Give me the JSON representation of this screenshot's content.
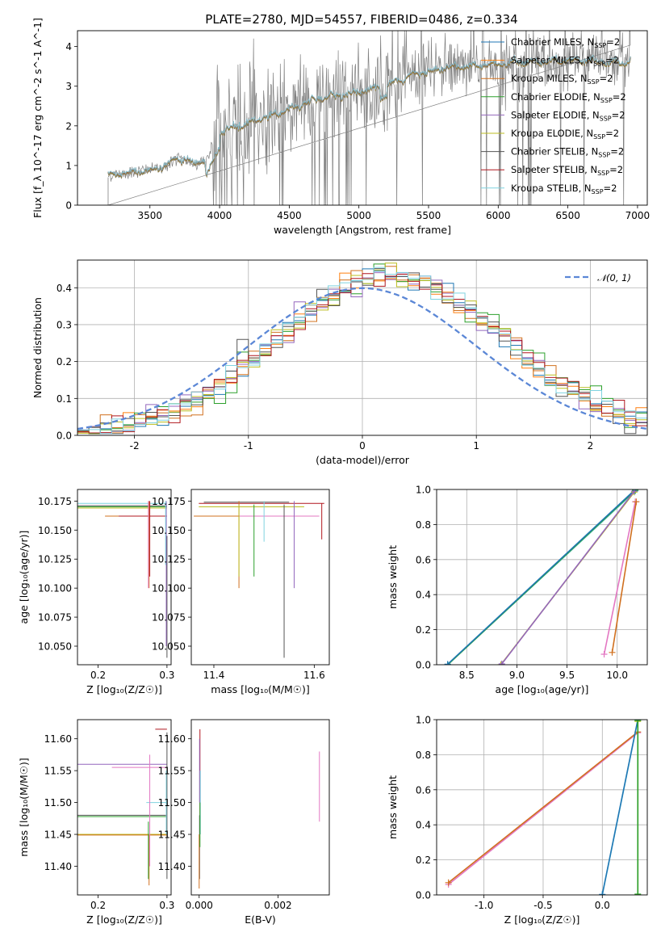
{
  "figure": {
    "title": "PLATE=2780, MJD=54557, FIBERID=0486, z=0.334"
  },
  "colors": {
    "Chabrier MILES": "#1f77b4",
    "Salpeter MILES": "#ff7f0e",
    "Kroupa MILES": "#d0701f",
    "Chabrier ELODIE": "#2ca02c",
    "Salpeter ELODIE": "#9467bd",
    "Kroupa ELODIE": "#bcbd22",
    "Chabrier STELIB": "#555555",
    "Salpeter STELIB": "#b0171f",
    "Kroupa STELIB": "#7fd3e0",
    "data": "#808080",
    "gaussian": "#5b87d6"
  },
  "chart_data": [
    {
      "id": "spectrum",
      "type": "line",
      "title": "PLATE=2780, MJD=54557, FIBERID=0486, z=0.334",
      "xlabel": "wavelength [Angstrom, rest frame]",
      "ylabel": "Flux [f_λ 10^-17 erg cm^-2 s^-1 A^-1]",
      "xlim": [
        2980,
        7070
      ],
      "ylim": [
        0,
        4.4
      ],
      "xticks": [
        3500,
        4000,
        4500,
        5000,
        5500,
        6000,
        6500,
        7000
      ],
      "yticks": [
        0,
        1,
        2,
        3,
        4
      ],
      "legend_position": "top-right",
      "legend": [
        {
          "label": "Chabrier MILES, N",
          "sub": "SSP",
          "tail": "=2",
          "color": "#1f77b4"
        },
        {
          "label": "Salpeter MILES, N",
          "sub": "SSP",
          "tail": "=2",
          "color": "#ff7f0e"
        },
        {
          "label": "Kroupa MILES, N",
          "sub": "SSP",
          "tail": "=2",
          "color": "#d0701f"
        },
        {
          "label": "Chabrier ELODIE, N",
          "sub": "SSP",
          "tail": "=2",
          "color": "#2ca02c"
        },
        {
          "label": "Salpeter ELODIE, N",
          "sub": "SSP",
          "tail": "=2",
          "color": "#9467bd"
        },
        {
          "label": "Kroupa ELODIE, N",
          "sub": "SSP",
          "tail": "=2",
          "color": "#bcbd22"
        },
        {
          "label": "Chabrier STELIB, N",
          "sub": "SSP",
          "tail": "=2",
          "color": "#555555"
        },
        {
          "label": "Salpeter STELIB, N",
          "sub": "SSP",
          "tail": "=2",
          "color": "#b0171f"
        },
        {
          "label": "Kroupa STELIB, N",
          "sub": "SSP",
          "tail": "=2",
          "color": "#7fd3e0"
        }
      ],
      "x_range": [
        3200,
        6950
      ],
      "model_continuum": [
        [
          3200,
          0.75
        ],
        [
          3400,
          0.85
        ],
        [
          3600,
          0.95
        ],
        [
          3700,
          1.2
        ],
        [
          3800,
          1.05
        ],
        [
          3900,
          1.1
        ],
        [
          4000,
          1.85
        ],
        [
          4200,
          2.05
        ],
        [
          4400,
          2.3
        ],
        [
          4600,
          2.55
        ],
        [
          4800,
          2.75
        ],
        [
          5000,
          2.85
        ],
        [
          5200,
          3.0
        ],
        [
          5400,
          3.3
        ],
        [
          5600,
          3.45
        ],
        [
          5800,
          3.5
        ],
        [
          6000,
          3.55
        ],
        [
          6200,
          3.6
        ],
        [
          6400,
          3.65
        ],
        [
          6600,
          3.65
        ],
        [
          6800,
          3.6
        ],
        [
          6950,
          3.6
        ]
      ]
    },
    {
      "id": "residuals",
      "type": "bar",
      "xlabel": "(data-model)/error",
      "ylabel": "Normed distribution",
      "xlim": [
        -2.5,
        2.5
      ],
      "ylim": [
        0,
        0.475
      ],
      "xticks": [
        -2,
        -1,
        0,
        1,
        2
      ],
      "yticks": [
        0.0,
        0.1,
        0.2,
        0.3,
        0.4
      ],
      "legend_position": "top-right",
      "gaussian_label": "𝒩(0, 1)",
      "bin_width": 0.1,
      "hist_x": [
        -2.5,
        2.5
      ]
    },
    {
      "id": "Z_age",
      "type": "line",
      "xlabel": "Z [log₁₀(Z/Z☉)]",
      "ylabel": "age  [log₁₀(age/yr)]",
      "xlim": [
        0.17,
        0.306
      ],
      "ylim": [
        10.034,
        10.185
      ],
      "xticks": [
        0.2,
        0.3
      ],
      "yticks": [
        10.05,
        10.075,
        10.1,
        10.125,
        10.15,
        10.175
      ]
    },
    {
      "id": "mass_age",
      "type": "line",
      "xlabel": "mass [log₁₀(M/M☉)]",
      "ylabel": "",
      "xlim": [
        11.355,
        11.63
      ],
      "ylim": [
        10.034,
        10.185
      ],
      "xticks": [
        11.4,
        11.6
      ],
      "yticks": [
        10.05,
        10.075,
        10.1,
        10.125,
        10.15,
        10.175
      ]
    },
    {
      "id": "age_weight",
      "type": "line",
      "xlabel": "age  [log₁₀(age/yr)]",
      "ylabel": "mass weight",
      "xlim": [
        8.2,
        10.3
      ],
      "ylim": [
        0,
        1.0
      ],
      "xticks": [
        8.5,
        9.0,
        9.5,
        10.0
      ],
      "yticks": [
        0.0,
        0.2,
        0.4,
        0.6,
        0.8,
        1.0
      ],
      "segments": [
        {
          "color": "#7fd3e0",
          "x": [
            8.31,
            10.18
          ],
          "y": [
            0.0,
            0.99
          ]
        },
        {
          "color": "#2ca02c",
          "x": [
            8.31,
            10.18
          ],
          "y": [
            0.0,
            0.995
          ]
        },
        {
          "color": "#1f77b4",
          "x": [
            8.31,
            10.18
          ],
          "y": [
            0.003,
            1.0
          ]
        },
        {
          "color": "#bcbd22",
          "x": [
            8.84,
            10.17
          ],
          "y": [
            0.0,
            0.985
          ]
        },
        {
          "color": "#9467bd",
          "x": [
            8.85,
            10.17
          ],
          "y": [
            0.005,
            0.99
          ]
        },
        {
          "color": "#e377c2",
          "x": [
            9.87,
            10.18
          ],
          "y": [
            0.06,
            0.93
          ]
        },
        {
          "color": "#d0701f",
          "x": [
            9.95,
            10.19
          ],
          "y": [
            0.07,
            0.93
          ]
        }
      ]
    },
    {
      "id": "Z_mass",
      "type": "line",
      "xlabel": "Z [log₁₀(Z/Z☉)]",
      "ylabel": "mass [log₁₀(M/M☉)]",
      "xlim": [
        0.17,
        0.306
      ],
      "ylim": [
        11.355,
        11.63
      ],
      "xticks": [
        0.2,
        0.3
      ],
      "yticks": [
        11.4,
        11.45,
        11.5,
        11.55,
        11.6
      ]
    },
    {
      "id": "ebv_mass",
      "type": "line",
      "xlabel": "E(B-V)",
      "ylabel": "",
      "xlim": [
        -0.0002,
        0.0033
      ],
      "ylim": [
        11.355,
        11.63
      ],
      "xticks": [
        0.0,
        0.002
      ],
      "yticks": [
        11.4,
        11.45,
        11.5,
        11.55,
        11.6
      ]
    },
    {
      "id": "Zw_weight",
      "type": "line",
      "xlabel": "Z [log₁₀(Z/Z☉)]",
      "ylabel": "mass weight",
      "xlim": [
        -1.4,
        0.38
      ],
      "ylim": [
        0,
        1.0
      ],
      "xticks": [
        -1.0,
        -0.5,
        0.0
      ],
      "yticks": [
        0.0,
        0.2,
        0.4,
        0.6,
        0.8,
        1.0
      ],
      "segments": [
        {
          "color": "#e377c2",
          "x": [
            -1.3,
            0.3
          ],
          "y": [
            0.06,
            0.925
          ]
        },
        {
          "color": "#d0701f",
          "x": [
            -1.3,
            0.3
          ],
          "y": [
            0.07,
            0.93
          ]
        },
        {
          "color": "#7fd3e0",
          "x": [
            0.0,
            0.3
          ],
          "y": [
            0.0,
            0.995
          ]
        },
        {
          "color": "#1f77b4",
          "x": [
            0.0,
            0.3
          ],
          "y": [
            0.003,
            1.0
          ]
        },
        {
          "color": "#bcbd22",
          "x": [
            0.3,
            0.3
          ],
          "y": [
            0.0,
            0.99
          ]
        },
        {
          "color": "#2ca02c",
          "x": [
            0.3,
            0.3
          ],
          "y": [
            0.005,
            0.995
          ]
        }
      ]
    }
  ]
}
